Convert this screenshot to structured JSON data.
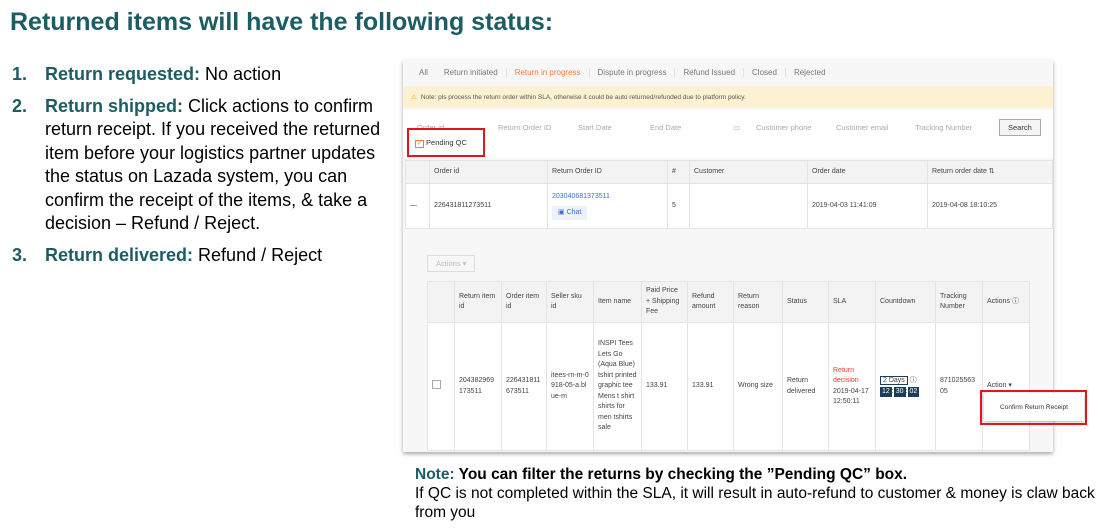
{
  "title": "Returned items will have the following status:",
  "steps": [
    {
      "num": "1.",
      "label": "Return requested:",
      "text": " No action"
    },
    {
      "num": "2.",
      "label": "Return shipped:",
      "text": " Click actions to confirm return receipt. If you received the returned item before your logistics partner updates the status on Lazada system, you can confirm the receipt of the items, & take a decision – Refund / Reject."
    },
    {
      "num": "3.",
      "label": "Return delivered:",
      "text": " Refund / Reject"
    }
  ],
  "screen": {
    "tabs": [
      "All",
      "Return initiated",
      "Return in progress",
      "Dispute in progress",
      "Refund Issued",
      "Closed",
      "Rejected"
    ],
    "active_tab": "Return in progress",
    "banner": "Note: pls process the return order within SLA, otherwise it could be auto returned/refunded due to platform policy.",
    "filters": {
      "order_id": "Order id",
      "return_order_id": "Return Order ID",
      "start_date": "Start Date",
      "end_date": "End Date",
      "customer_phone": "Customer phone",
      "customer_email": "Customer email",
      "tracking_number": "Tracking Number",
      "search": "Search",
      "pending_qc": "Pending QC"
    },
    "order_table": {
      "headers": [
        "Order id",
        "Return Order ID",
        "#",
        "Customer",
        "Order date",
        "Return order date ⇅"
      ],
      "row": {
        "toggle": "—",
        "order_id": "226431811273511",
        "return_order_id": "203040681373511",
        "chat": "Chat",
        "count": "5",
        "customer": "",
        "order_date": "2019-04-03 11:41:09",
        "return_order_date": "2019-04-08 18:10:25"
      }
    },
    "actions_button": "Actions ▾",
    "item_table": {
      "headers": [
        "Return item id",
        "Order item id",
        "Seller sku id",
        "Item name",
        "Paid Price + Shipping Fee",
        "Refund amount",
        "Return reason",
        "Status",
        "SLA",
        "Countdown",
        "Tracking Number",
        "Actions ⓘ"
      ],
      "row": {
        "return_item_id": "204382969173511",
        "order_item_id": "226431811673511",
        "seller_sku": "itees-rn-m-0918-05-a.blue-m",
        "item_name": "INSPI Tees Lets Go (Aqua Blue) tshirt printed graphic tee Mens t shirt shirts for men tshirts sale",
        "paid": "133.91",
        "refund": "133.91",
        "reason": "Wrong size",
        "status": "Return delivered",
        "sla_label": "Return decision",
        "sla_date": "2019-04-17 12:50:11",
        "days": "2 Days",
        "hh": "12",
        "mm": "30",
        "ss": "02",
        "tracking": "87102556305",
        "action": "Action ▾",
        "menu_item": "Confirm Return Receipt"
      }
    }
  },
  "note": {
    "label": "Note:",
    "bold": " You can filter the returns by checking the ”Pending QC” box.",
    "text": "If QC is not completed within the SLA, it will result in auto-refund to customer & money is claw back from you"
  },
  "colors": {
    "accent": "#1c5d64",
    "highlight": "#e4161b",
    "active_tab": "#f57b3d"
  }
}
